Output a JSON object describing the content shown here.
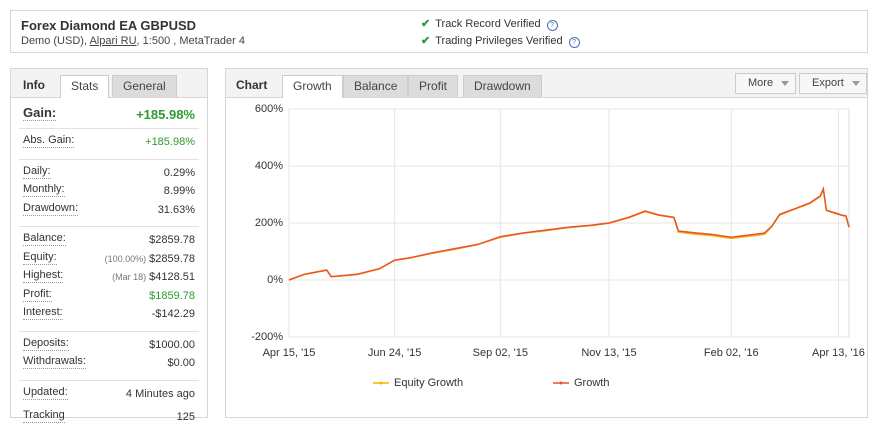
{
  "header": {
    "title": "Forex Diamond EA GBPUSD",
    "subtitle": [
      "Demo (USD), ",
      "Alpari RU",
      ", 1:500 , MetaTrader 4"
    ],
    "verifications": [
      "Track Record Verified",
      "Trading Privileges Verified"
    ]
  },
  "info": {
    "tabs": [
      "Info",
      "Stats",
      "General"
    ],
    "gain": {
      "label": "Gain:",
      "value": "+185.98%"
    },
    "groups": [
      [
        {
          "label": "Abs. Gain:",
          "value": "+185.98%",
          "green": true
        }
      ],
      [
        {
          "label": "Daily:",
          "value": "0.29%"
        },
        {
          "label": "Monthly:",
          "value": "8.99%"
        },
        {
          "label": "Drawdown:",
          "value": "31.63%"
        }
      ],
      [
        {
          "label": "Balance:",
          "value": "$2859.78"
        },
        {
          "label": "Equity:",
          "note": "(100.00%)",
          "value": "$2859.78"
        },
        {
          "label": "Highest:",
          "note": "(Mar 18)",
          "value": "$4128.51"
        },
        {
          "label": "Profit:",
          "value": "$1859.78",
          "green": true
        },
        {
          "label": "Interest:",
          "value": "-$142.29"
        }
      ],
      [
        {
          "label": "Deposits:",
          "value": "$1000.00"
        },
        {
          "label": "Withdrawals:",
          "value": "$0.00"
        }
      ],
      [
        {
          "label": "Updated:",
          "value": "4 Minutes ago"
        },
        {
          "label": "Tracking",
          "value": "125"
        }
      ]
    ]
  },
  "chart_panel": {
    "tabs": [
      "Chart",
      "Growth",
      "Balance",
      "Profit",
      "Drawdown"
    ],
    "buttons": [
      "More",
      "Export"
    ]
  },
  "chart_data": {
    "type": "line",
    "x": [
      0,
      10,
      25,
      28,
      45,
      60,
      70,
      80,
      95,
      110,
      125,
      140,
      155,
      170,
      185,
      200,
      212,
      225,
      236,
      245,
      255,
      258,
      270,
      280,
      293,
      305,
      315,
      320,
      325,
      335,
      345,
      352,
      354,
      356,
      362,
      366,
      369,
      371
    ],
    "series": [
      {
        "name": "Equity Growth",
        "color": "#f5b400",
        "values": [
          0,
          19,
          34,
          11,
          19,
          39,
          69,
          77,
          94,
          108,
          124,
          150,
          164,
          173,
          184,
          191,
          199,
          218,
          240,
          227,
          219,
          168,
          160,
          156,
          146,
          154,
          160,
          188,
          228,
          249,
          268,
          293,
          318,
          244,
          233,
          227,
          223,
          185
        ]
      },
      {
        "name": "Growth",
        "color": "#e8532b",
        "values": [
          0,
          20,
          35,
          12,
          20,
          40,
          70,
          78,
          95,
          110,
          125,
          152,
          165,
          175,
          185,
          192,
          200,
          220,
          242,
          228,
          220,
          172,
          165,
          160,
          150,
          158,
          165,
          190,
          230,
          250,
          270,
          295,
          320,
          245,
          235,
          228,
          225,
          186
        ]
      }
    ],
    "xlim": [
      0,
      371
    ],
    "xticks": [
      {
        "value": 0,
        "label": "Apr 15, '15"
      },
      {
        "value": 70,
        "label": "Jun 24, '15"
      },
      {
        "value": 140,
        "label": "Sep 02, '15"
      },
      {
        "value": 212,
        "label": "Nov 13, '15"
      },
      {
        "value": 293,
        "label": "Feb 02, '16"
      },
      {
        "value": 364,
        "label": "Apr 13, '16"
      }
    ],
    "ylim": [
      -200,
      600
    ],
    "yticks": [
      {
        "value": -200,
        "label": "-200%"
      },
      {
        "value": 0,
        "label": "0%"
      },
      {
        "value": 200,
        "label": "200%"
      },
      {
        "value": 400,
        "label": "400%"
      },
      {
        "value": 600,
        "label": "600%"
      }
    ],
    "grid": true
  }
}
